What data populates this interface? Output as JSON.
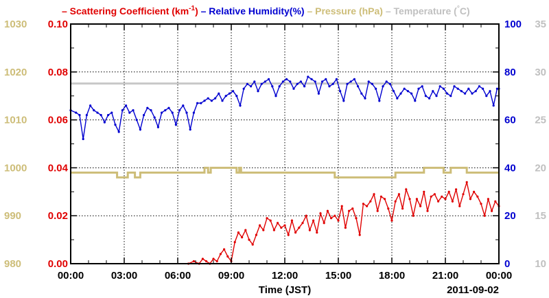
{
  "chart_data": {
    "type": "line",
    "title_parts": [
      {
        "text": "– Scattering Coefficient (km",
        "sup": "-1",
        "after": ")",
        "color": "#e00000"
      },
      {
        "text": " – Relative Humidity(%)",
        "color": "#0000d0"
      },
      {
        "text": " – Pressure (hPa)",
        "color": "#cdbd78"
      },
      {
        "text": " – Temperature (",
        "deg": "°",
        "after": "C)",
        "color": "#c0c0c0"
      }
    ],
    "xlabel": "Time (JST)",
    "date_label": "2011-09-02",
    "x_ticks": [
      "00:00",
      "03:00",
      "06:00",
      "09:00",
      "12:00",
      "15:00",
      "18:00",
      "21:00",
      "00:00"
    ],
    "xlim_hours": [
      0,
      24
    ],
    "grid": true,
    "axes": {
      "pressure": {
        "side": "left-outer",
        "range": [
          980,
          1030
        ],
        "ticks": [
          "980",
          "990",
          "1000",
          "1010",
          "1020",
          "1030"
        ],
        "color": "#cdbd78"
      },
      "scattering": {
        "side": "left-inner",
        "range": [
          0.0,
          0.1
        ],
        "ticks": [
          "0.00",
          "0.02",
          "0.04",
          "0.06",
          "0.08",
          "0.10"
        ],
        "color": "#e00000"
      },
      "humidity": {
        "side": "right-inner",
        "range": [
          0,
          100
        ],
        "ticks": [
          "0",
          "20",
          "40",
          "60",
          "80",
          "100"
        ],
        "color": "#0000d0"
      },
      "temperature": {
        "side": "right-outer",
        "range": [
          10,
          35
        ],
        "ticks": [
          "10",
          "15",
          "20",
          "25",
          "30",
          "35"
        ],
        "color": "#c0c0c0"
      }
    },
    "series": [
      {
        "name": "Temperature",
        "axis": "temperature",
        "color": "#c8c8c8",
        "step": false,
        "x": [
          0,
          24
        ],
        "y": [
          28.8,
          28.8
        ]
      },
      {
        "name": "Pressure",
        "axis": "pressure",
        "color": "#cdbd78",
        "step": true,
        "x": [
          0,
          2.6,
          3.2,
          3.6,
          3.9,
          4.8,
          7.5,
          7.7,
          7.85,
          9.3,
          9.45,
          9.55,
          14.8,
          18.2,
          19.8,
          20.9,
          21.3,
          22.2,
          22.5,
          24
        ],
        "y": [
          999,
          998,
          999,
          998,
          999,
          999,
          1000,
          999,
          1000,
          999,
          1000,
          999,
          998,
          999,
          1000,
          999,
          1000,
          999,
          999,
          999
        ]
      },
      {
        "name": "Relative Humidity",
        "axis": "humidity",
        "color": "#0000d0",
        "step": false,
        "x": [
          0,
          0.3,
          0.5,
          0.7,
          0.9,
          1.1,
          1.3,
          1.5,
          1.7,
          1.9,
          2.1,
          2.3,
          2.5,
          2.7,
          2.9,
          3.1,
          3.3,
          3.5,
          3.7,
          3.9,
          4.1,
          4.3,
          4.5,
          4.7,
          4.9,
          5.1,
          5.3,
          5.5,
          5.7,
          5.9,
          6.1,
          6.3,
          6.5,
          6.7,
          6.9,
          7.1,
          7.3,
          7.5,
          7.7,
          7.9,
          8.1,
          8.3,
          8.5,
          8.7,
          8.9,
          9.1,
          9.3,
          9.5,
          9.7,
          9.9,
          10.1,
          10.3,
          10.5,
          10.7,
          10.9,
          11.1,
          11.3,
          11.5,
          11.7,
          11.9,
          12.1,
          12.3,
          12.5,
          12.7,
          12.9,
          13.1,
          13.3,
          13.5,
          13.7,
          13.9,
          14.1,
          14.3,
          14.5,
          14.7,
          14.9,
          15.1,
          15.3,
          15.5,
          15.7,
          15.9,
          16.1,
          16.3,
          16.5,
          16.7,
          16.9,
          17.1,
          17.3,
          17.5,
          17.7,
          17.9,
          18.1,
          18.3,
          18.5,
          18.7,
          18.9,
          19.1,
          19.3,
          19.5,
          19.7,
          19.9,
          20.1,
          20.3,
          20.5,
          20.7,
          20.9,
          21.1,
          21.3,
          21.5,
          21.7,
          21.9,
          22.1,
          22.3,
          22.5,
          22.7,
          22.9,
          23.1,
          23.3,
          23.5,
          23.7,
          23.9,
          24
        ],
        "y": [
          64,
          63,
          62,
          52,
          62,
          66,
          64,
          63,
          62,
          59,
          62,
          63,
          58,
          55,
          64,
          66,
          63,
          64,
          60,
          56,
          62,
          65,
          64,
          61,
          57,
          63,
          64,
          65,
          63,
          58,
          64,
          66,
          63,
          56,
          63,
          67,
          67,
          68,
          69,
          68,
          69,
          71,
          68,
          70,
          71,
          72,
          70,
          66,
          73,
          75,
          74,
          76,
          72,
          75,
          76,
          77,
          74,
          70,
          74,
          76,
          77,
          76,
          73,
          75,
          76,
          74,
          78,
          77,
          76,
          71,
          76,
          77,
          74,
          75,
          77,
          72,
          68,
          75,
          76,
          77,
          74,
          71,
          69,
          76,
          75,
          73,
          68,
          74,
          76,
          75,
          72,
          69,
          71,
          73,
          72,
          71,
          68,
          73,
          74,
          70,
          69,
          72,
          70,
          74,
          73,
          71,
          70,
          74,
          73,
          72,
          71,
          73,
          71,
          72,
          74,
          73,
          70,
          72,
          66,
          73,
          73
        ]
      },
      {
        "name": "Scattering Coefficient",
        "axis": "scattering",
        "color": "#e00000",
        "step": false,
        "x": [
          6.6,
          6.9,
          7.2,
          7.4,
          7.6,
          7.8,
          8.0,
          8.2,
          8.4,
          8.6,
          8.8,
          9.0,
          9.2,
          9.4,
          9.6,
          9.8,
          10.0,
          10.2,
          10.4,
          10.6,
          10.8,
          11.0,
          11.2,
          11.4,
          11.6,
          11.8,
          12.0,
          12.2,
          12.4,
          12.6,
          12.8,
          13.0,
          13.2,
          13.4,
          13.6,
          13.8,
          14.0,
          14.2,
          14.4,
          14.6,
          14.8,
          15.0,
          15.2,
          15.4,
          15.6,
          15.8,
          16.0,
          16.2,
          16.4,
          16.6,
          16.8,
          17.0,
          17.2,
          17.4,
          17.6,
          17.8,
          18.0,
          18.2,
          18.4,
          18.6,
          18.8,
          19.0,
          19.2,
          19.4,
          19.6,
          19.8,
          20.0,
          20.2,
          20.4,
          20.6,
          20.8,
          21.0,
          21.2,
          21.4,
          21.6,
          21.8,
          22.0,
          22.2,
          22.4,
          22.6,
          22.8,
          23.0,
          23.2,
          23.4,
          23.6,
          23.8,
          24
        ],
        "y": [
          0.0,
          0.001,
          0.0,
          0.002,
          0.001,
          0.0,
          0.002,
          0.001,
          0.004,
          0.006,
          0.003,
          0.001,
          0.009,
          0.013,
          0.011,
          0.014,
          0.01,
          0.008,
          0.012,
          0.016,
          0.014,
          0.019,
          0.018,
          0.014,
          0.017,
          0.015,
          0.016,
          0.012,
          0.018,
          0.013,
          0.015,
          0.017,
          0.02,
          0.014,
          0.018,
          0.013,
          0.021,
          0.017,
          0.022,
          0.019,
          0.02,
          0.018,
          0.024,
          0.015,
          0.022,
          0.023,
          0.019,
          0.012,
          0.025,
          0.024,
          0.026,
          0.029,
          0.022,
          0.028,
          0.027,
          0.023,
          0.018,
          0.026,
          0.029,
          0.023,
          0.031,
          0.027,
          0.02,
          0.027,
          0.024,
          0.03,
          0.022,
          0.028,
          0.029,
          0.026,
          0.028,
          0.027,
          0.03,
          0.026,
          0.031,
          0.024,
          0.029,
          0.034,
          0.027,
          0.03,
          0.028,
          0.025,
          0.02,
          0.027,
          0.022,
          0.026,
          0.024
        ]
      }
    ]
  }
}
